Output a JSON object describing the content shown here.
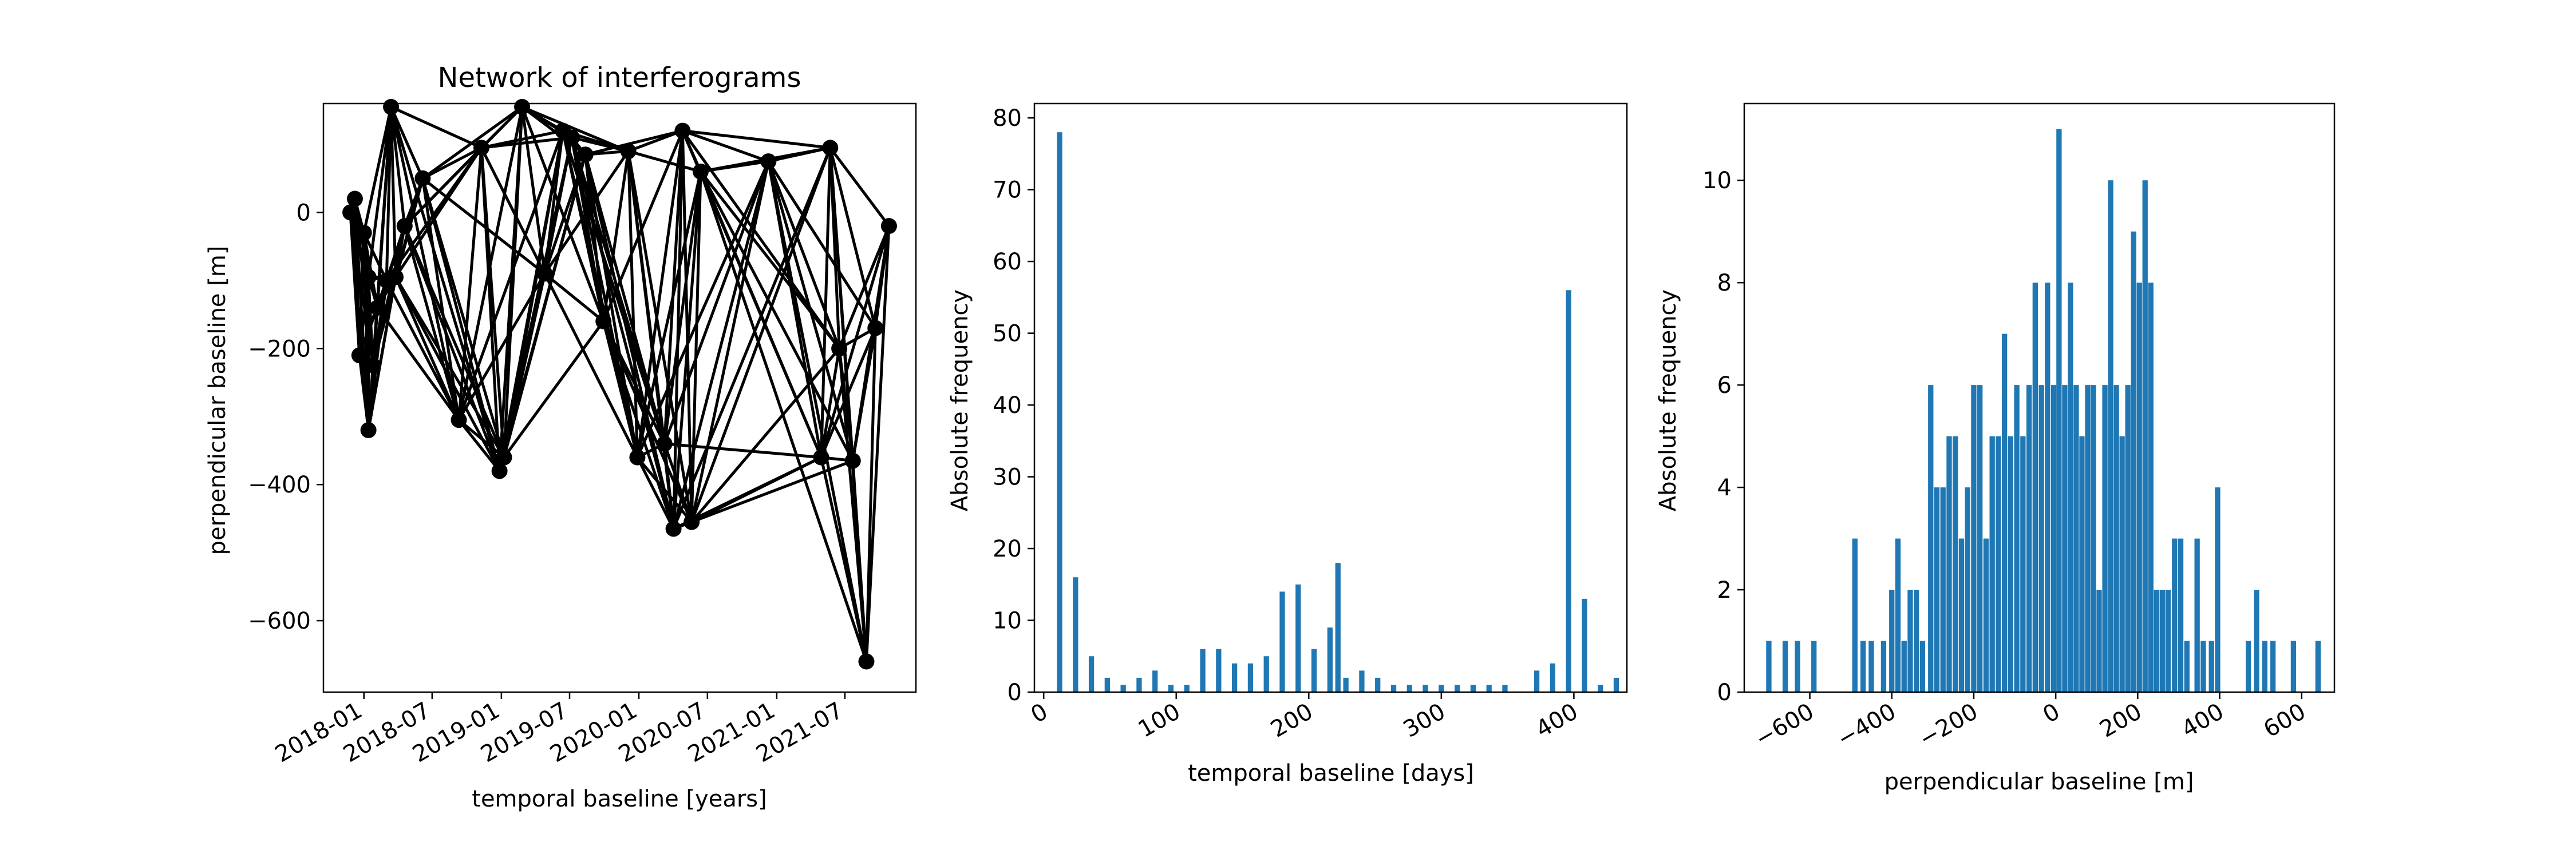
{
  "chart_data": [
    {
      "type": "network",
      "title": "Network of interferograms",
      "xlabel": "temporal baseline [years]",
      "ylabel": "perpendicular baseline [m]",
      "xticks": [
        "2018-01",
        "2018-07",
        "2019-01",
        "2019-07",
        "2020-01",
        "2020-07",
        "2021-01",
        "2021-07"
      ],
      "yticks": [
        0,
        -200,
        -400,
        -600
      ],
      "ylim": [
        -705,
        160
      ],
      "node_color": "#000000",
      "edge_color": "#000000",
      "nodes": [
        {
          "x": "2017-11-26",
          "y": 0
        },
        {
          "x": "2017-12-08",
          "y": 20
        },
        {
          "x": "2017-12-20",
          "y": -210
        },
        {
          "x": "2018-01-01",
          "y": -30
        },
        {
          "x": "2018-01-13",
          "y": -95
        },
        {
          "x": "2018-01-13",
          "y": -320
        },
        {
          "x": "2018-01-25",
          "y": -225
        },
        {
          "x": "2018-02-06",
          "y": -140
        },
        {
          "x": "2018-03-02",
          "y": -100
        },
        {
          "x": "2018-03-14",
          "y": 155
        },
        {
          "x": "2018-03-26",
          "y": -95
        },
        {
          "x": "2018-04-19",
          "y": -20
        },
        {
          "x": "2018-06-06",
          "y": 50
        },
        {
          "x": "2018-09-10",
          "y": -305
        },
        {
          "x": "2018-11-09",
          "y": 95
        },
        {
          "x": "2018-12-27",
          "y": -380
        },
        {
          "x": "2019-01-08",
          "y": -360
        },
        {
          "x": "2019-02-25",
          "y": 155
        },
        {
          "x": "2019-04-26",
          "y": -90
        },
        {
          "x": "2019-06-13",
          "y": 120
        },
        {
          "x": "2019-07-07",
          "y": 110
        },
        {
          "x": "2019-08-12",
          "y": 85
        },
        {
          "x": "2019-09-29",
          "y": -160
        },
        {
          "x": "2019-12-04",
          "y": 90
        },
        {
          "x": "2019-12-28",
          "y": -360
        },
        {
          "x": "2020-03-09",
          "y": -340
        },
        {
          "x": "2020-04-02",
          "y": -465
        },
        {
          "x": "2020-04-26",
          "y": 120
        },
        {
          "x": "2020-05-20",
          "y": -455
        },
        {
          "x": "2020-06-13",
          "y": 60
        },
        {
          "x": "2020-12-10",
          "y": 75
        },
        {
          "x": "2021-04-29",
          "y": -360
        },
        {
          "x": "2021-05-23",
          "y": 95
        },
        {
          "x": "2021-06-16",
          "y": -200
        },
        {
          "x": "2021-07-22",
          "y": -365
        },
        {
          "x": "2021-08-27",
          "y": -660
        },
        {
          "x": "2021-09-20",
          "y": -170
        },
        {
          "x": "2021-10-26",
          "y": -20
        }
      ]
    },
    {
      "type": "bar",
      "title": "",
      "xlabel": "temporal baseline [days]",
      "ylabel": "Absolute frequency",
      "xlim": [
        -7,
        440
      ],
      "ylim": [
        0,
        82
      ],
      "xticks": [
        0,
        100,
        200,
        300,
        400
      ],
      "yticks": [
        0,
        10,
        20,
        30,
        40,
        50,
        60,
        70,
        80
      ],
      "bin_width": 4,
      "color": "#1f77b4",
      "bins": [
        {
          "x": 12,
          "count": 78
        },
        {
          "x": 24,
          "count": 16
        },
        {
          "x": 36,
          "count": 5
        },
        {
          "x": 48,
          "count": 2
        },
        {
          "x": 60,
          "count": 1
        },
        {
          "x": 72,
          "count": 2
        },
        {
          "x": 84,
          "count": 3
        },
        {
          "x": 96,
          "count": 1
        },
        {
          "x": 108,
          "count": 1
        },
        {
          "x": 120,
          "count": 6
        },
        {
          "x": 132,
          "count": 6
        },
        {
          "x": 144,
          "count": 4
        },
        {
          "x": 156,
          "count": 4
        },
        {
          "x": 168,
          "count": 5
        },
        {
          "x": 180,
          "count": 14
        },
        {
          "x": 192,
          "count": 15
        },
        {
          "x": 204,
          "count": 6
        },
        {
          "x": 216,
          "count": 9
        },
        {
          "x": 222,
          "count": 18
        },
        {
          "x": 228,
          "count": 2
        },
        {
          "x": 240,
          "count": 3
        },
        {
          "x": 252,
          "count": 2
        },
        {
          "x": 264,
          "count": 1
        },
        {
          "x": 276,
          "count": 1
        },
        {
          "x": 288,
          "count": 1
        },
        {
          "x": 300,
          "count": 1
        },
        {
          "x": 312,
          "count": 1
        },
        {
          "x": 324,
          "count": 1
        },
        {
          "x": 336,
          "count": 1
        },
        {
          "x": 348,
          "count": 1
        },
        {
          "x": 372,
          "count": 3
        },
        {
          "x": 384,
          "count": 4
        },
        {
          "x": 396,
          "count": 56
        },
        {
          "x": 408,
          "count": 13
        },
        {
          "x": 420,
          "count": 1
        },
        {
          "x": 432,
          "count": 2
        }
      ]
    },
    {
      "type": "bar",
      "title": "",
      "xlabel": "perpendicular baseline [m]",
      "ylabel": "Absolute frequency",
      "xlim": [
        -760,
        680
      ],
      "ylim": [
        0,
        11.5
      ],
      "xticks": [
        -600,
        -400,
        -200,
        0,
        200,
        400,
        600
      ],
      "yticks": [
        0,
        2,
        4,
        6,
        8,
        10
      ],
      "color": "#1f77b4",
      "bin_width": 13,
      "bins": [
        {
          "x": -700,
          "count": 1
        },
        {
          "x": -660,
          "count": 1
        },
        {
          "x": -630,
          "count": 1
        },
        {
          "x": -590,
          "count": 1
        },
        {
          "x": -490,
          "count": 3
        },
        {
          "x": -470,
          "count": 1
        },
        {
          "x": -450,
          "count": 1
        },
        {
          "x": -420,
          "count": 1
        },
        {
          "x": -400,
          "count": 2
        },
        {
          "x": -385,
          "count": 3
        },
        {
          "x": -370,
          "count": 1
        },
        {
          "x": -355,
          "count": 2
        },
        {
          "x": -340,
          "count": 2
        },
        {
          "x": -325,
          "count": 1
        },
        {
          "x": -305,
          "count": 6
        },
        {
          "x": -290,
          "count": 4
        },
        {
          "x": -275,
          "count": 4
        },
        {
          "x": -260,
          "count": 5
        },
        {
          "x": -245,
          "count": 5
        },
        {
          "x": -230,
          "count": 3
        },
        {
          "x": -215,
          "count": 4
        },
        {
          "x": -200,
          "count": 6
        },
        {
          "x": -185,
          "count": 6
        },
        {
          "x": -170,
          "count": 3
        },
        {
          "x": -155,
          "count": 5
        },
        {
          "x": -140,
          "count": 5
        },
        {
          "x": -125,
          "count": 7
        },
        {
          "x": -110,
          "count": 5
        },
        {
          "x": -95,
          "count": 6
        },
        {
          "x": -80,
          "count": 5
        },
        {
          "x": -65,
          "count": 6
        },
        {
          "x": -50,
          "count": 8
        },
        {
          "x": -35,
          "count": 6
        },
        {
          "x": -20,
          "count": 8
        },
        {
          "x": -5,
          "count": 6
        },
        {
          "x": 8,
          "count": 11
        },
        {
          "x": 22,
          "count": 6
        },
        {
          "x": 36,
          "count": 8
        },
        {
          "x": 50,
          "count": 6
        },
        {
          "x": 64,
          "count": 5
        },
        {
          "x": 78,
          "count": 6
        },
        {
          "x": 92,
          "count": 6
        },
        {
          "x": 106,
          "count": 2
        },
        {
          "x": 120,
          "count": 6
        },
        {
          "x": 134,
          "count": 10
        },
        {
          "x": 148,
          "count": 6
        },
        {
          "x": 162,
          "count": 5
        },
        {
          "x": 176,
          "count": 6
        },
        {
          "x": 190,
          "count": 9
        },
        {
          "x": 204,
          "count": 8
        },
        {
          "x": 218,
          "count": 10
        },
        {
          "x": 232,
          "count": 8
        },
        {
          "x": 246,
          "count": 2
        },
        {
          "x": 260,
          "count": 2
        },
        {
          "x": 274,
          "count": 2
        },
        {
          "x": 290,
          "count": 3
        },
        {
          "x": 305,
          "count": 3
        },
        {
          "x": 320,
          "count": 1
        },
        {
          "x": 345,
          "count": 3
        },
        {
          "x": 360,
          "count": 1
        },
        {
          "x": 380,
          "count": 1
        },
        {
          "x": 395,
          "count": 4
        },
        {
          "x": 470,
          "count": 1
        },
        {
          "x": 490,
          "count": 2
        },
        {
          "x": 510,
          "count": 1
        },
        {
          "x": 530,
          "count": 1
        },
        {
          "x": 580,
          "count": 1
        },
        {
          "x": 640,
          "count": 1
        }
      ]
    }
  ]
}
